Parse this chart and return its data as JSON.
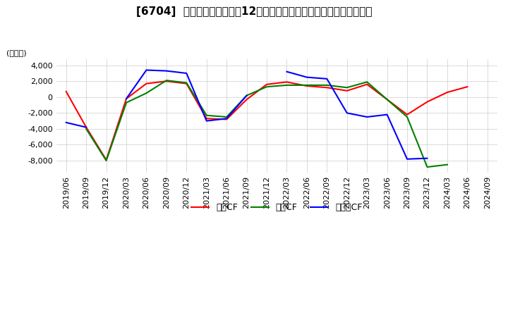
{
  "title": "[6704]  キャッシュフローの12か月移動合計の対前年同期増減額の推移",
  "ylabel": "(百万円)",
  "ylim": [
    -9500,
    4800
  ],
  "yticks": [
    4000,
    2000,
    0,
    -2000,
    -4000,
    -6000,
    -8000
  ],
  "background_color": "#ffffff",
  "grid_color": "#cccccc",
  "dates": [
    "2019/06",
    "2019/09",
    "2019/12",
    "2020/03",
    "2020/06",
    "2020/09",
    "2020/12",
    "2021/03",
    "2021/06",
    "2021/09",
    "2021/12",
    "2022/03",
    "2022/06",
    "2022/09",
    "2022/12",
    "2023/03",
    "2023/06",
    "2023/09",
    "2023/12",
    "2024/03",
    "2024/06",
    "2024/09"
  ],
  "eigyo_cf": [
    700,
    -3800,
    -7900,
    -200,
    1700,
    2000,
    1700,
    -2700,
    -2800,
    -300,
    1600,
    1900,
    1400,
    1200,
    800,
    1600,
    -300,
    -2200,
    -600,
    600,
    1300,
    null
  ],
  "toshi_cf": [
    null,
    -4000,
    -8000,
    -700,
    500,
    2100,
    1800,
    -2300,
    -2500,
    200,
    1300,
    1500,
    1500,
    1500,
    1200,
    1900,
    -300,
    -2500,
    -8800,
    -8500,
    null,
    null
  ],
  "free_cf": [
    -3200,
    -3800,
    null,
    -200,
    3400,
    3300,
    3000,
    -3000,
    -2700,
    200,
    null,
    3200,
    2500,
    2300,
    -2000,
    -2500,
    -2200,
    -7800,
    -7700,
    null,
    null,
    null
  ],
  "eigyo_color": "#ff0000",
  "toshi_color": "#008000",
  "free_color": "#0000ff",
  "legend_labels": [
    "営業CF",
    "投資CF",
    "フリーCF"
  ]
}
